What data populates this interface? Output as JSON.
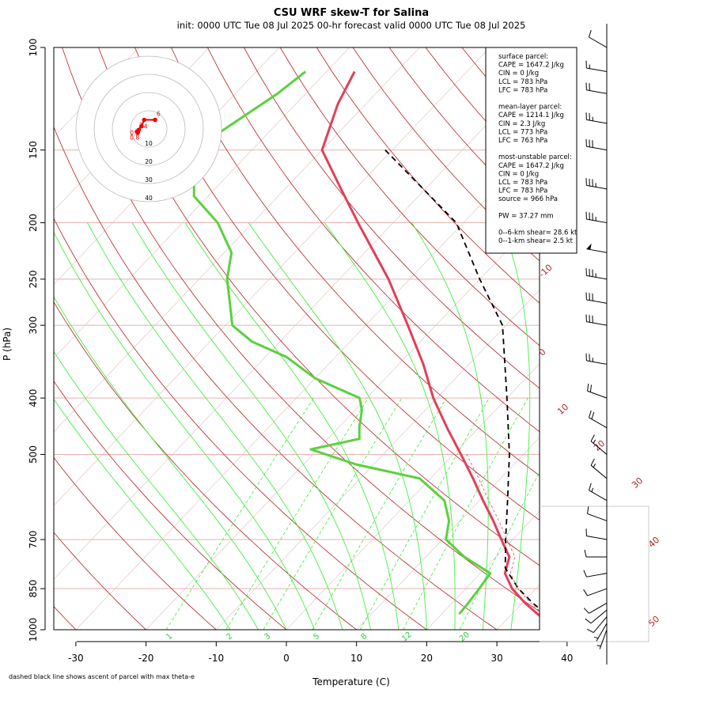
{
  "header": {
    "title": "CSU WRF skew-T for Salina",
    "subtitle": "init: 0000 UTC Tue 08 Jul 2025     00-hr forecast valid 0000 UTC Tue 08 Jul 2025"
  },
  "footnote": "dashed black line shows ascent of parcel with max theta-e",
  "info_box": {
    "lines": [
      "surface parcel:",
      "CAPE = 1647.2 J/kg",
      "CIN = 0 J/kg",
      "LCL = 783 hPa",
      "LFC = 783 hPa",
      "",
      "mean-layer parcel:",
      "CAPE = 1214.1 J/kg",
      "CIN = 2.3 J/kg",
      "LCL = 773 hPa",
      "LFC = 763 hPa",
      "",
      "most-unstable parcel:",
      "CAPE = 1647.2 J/kg",
      "CIN = 0 J/kg",
      "LCL = 783 hPa",
      "LFC = 783 hPa",
      "source = 966 hPa",
      "",
      "PW =  37.27 mm",
      "",
      "0--6-km shear= 28.6 kt",
      "0--1-km shear= 2.5 kt"
    ]
  },
  "chart_data": {
    "type": "line",
    "title": "CSU WRF skew-T for Salina",
    "xlabel": "Temperature (C)",
    "ylabel": "P (hPa)",
    "x_ticks": [
      -30,
      -20,
      -10,
      0,
      10,
      20,
      30,
      40
    ],
    "y_ticks": [
      100,
      150,
      200,
      250,
      300,
      400,
      500,
      700,
      850,
      1000
    ],
    "xlim": [
      -33,
      44
    ],
    "ylim": [
      1000,
      100
    ],
    "y_scale": "log",
    "isotherm_labels": [
      -10,
      0,
      10,
      20,
      30,
      40,
      50
    ],
    "mixing_ratio_labels": [
      "1",
      "2",
      "3",
      "5",
      "8",
      "12",
      "20"
    ],
    "colors": {
      "temperature": "#e0405a",
      "dewpoint": "#5cd040",
      "parcel": "#000000",
      "isotherm": "#b22222",
      "mixing_ratio": "#33ee33",
      "isobar": "#e8b0b0",
      "wind": "#000000"
    },
    "series": [
      {
        "name": "temperature",
        "p": [
          950,
          900,
          850,
          800,
          750,
          700,
          650,
          600,
          550,
          500,
          450,
          400,
          350,
          300,
          250,
          200,
          175,
          150,
          125,
          110
        ],
        "values": [
          34.5,
          30.4,
          26.6,
          23.5,
          21.9,
          18.4,
          14.7,
          10.5,
          6.1,
          1.1,
          -4.5,
          -10.5,
          -16.5,
          -24,
          -33,
          -45,
          -52,
          -60,
          -64,
          -66
        ]
      },
      {
        "name": "dewpoint",
        "p": [
          940,
          900,
          850,
          800,
          750,
          700,
          650,
          600,
          550,
          520,
          490,
          470,
          450,
          420,
          400,
          370,
          340,
          320,
          300,
          250,
          225,
          200,
          180,
          160,
          140,
          120,
          110
        ],
        "values": [
          22.5,
          22.3,
          21.9,
          21.4,
          15.5,
          10.5,
          8.4,
          5,
          -1.5,
          -12.5,
          -21,
          -15.5,
          -17,
          -19,
          -21,
          -30,
          -37,
          -44,
          -49,
          -56,
          -59,
          -65,
          -72,
          -76,
          -77,
          -74,
          -73
        ]
      },
      {
        "name": "parcel",
        "p": [
          960,
          900,
          850,
          800,
          783,
          700,
          600,
          500,
          400,
          300,
          250,
          200,
          150
        ],
        "values": [
          36.5,
          31.5,
          27.5,
          24,
          22.8,
          19,
          14,
          8,
          0,
          -10.5,
          -20,
          -31,
          -51
        ]
      }
    ],
    "hodograph": {
      "ring_labels": [
        "10",
        "20",
        "30",
        "40"
      ],
      "point_labels": [
        "0.5",
        "0.8",
        "3",
        "4",
        "6"
      ],
      "u": [
        -6,
        -6.5,
        -5.5,
        -4,
        -2.5,
        3.5
      ],
      "v": [
        -2,
        -1.5,
        -0.5,
        1.5,
        5,
        5
      ]
    },
    "winds": [
      {
        "p": 1000,
        "speed": 5,
        "dir": 200
      },
      {
        "p": 975,
        "speed": 5,
        "dir": 210
      },
      {
        "p": 950,
        "speed": 10,
        "dir": 220
      },
      {
        "p": 925,
        "speed": 10,
        "dir": 230
      },
      {
        "p": 900,
        "speed": 10,
        "dir": 240
      },
      {
        "p": 850,
        "speed": 10,
        "dir": 250
      },
      {
        "p": 800,
        "speed": 10,
        "dir": 260
      },
      {
        "p": 750,
        "speed": 10,
        "dir": 270
      },
      {
        "p": 700,
        "speed": 10,
        "dir": 280
      },
      {
        "p": 650,
        "speed": 10,
        "dir": 290
      },
      {
        "p": 600,
        "speed": 15,
        "dir": 300
      },
      {
        "p": 550,
        "speed": 15,
        "dir": 310
      },
      {
        "p": 500,
        "speed": 15,
        "dir": 310
      },
      {
        "p": 450,
        "speed": 20,
        "dir": 300
      },
      {
        "p": 400,
        "speed": 20,
        "dir": 290
      },
      {
        "p": 350,
        "speed": 25,
        "dir": 280
      },
      {
        "p": 300,
        "speed": 30,
        "dir": 280
      },
      {
        "p": 275,
        "speed": 30,
        "dir": 280
      },
      {
        "p": 250,
        "speed": 35,
        "dir": 280
      },
      {
        "p": 225,
        "speed": 50,
        "dir": 280
      },
      {
        "p": 200,
        "speed": 35,
        "dir": 280
      },
      {
        "p": 175,
        "speed": 35,
        "dir": 280
      },
      {
        "p": 150,
        "speed": 30,
        "dir": 280
      },
      {
        "p": 135,
        "speed": 25,
        "dir": 280
      },
      {
        "p": 120,
        "speed": 20,
        "dir": 280
      },
      {
        "p": 110,
        "speed": 15,
        "dir": 280
      },
      {
        "p": 100,
        "speed": 10,
        "dir": 300
      }
    ]
  }
}
